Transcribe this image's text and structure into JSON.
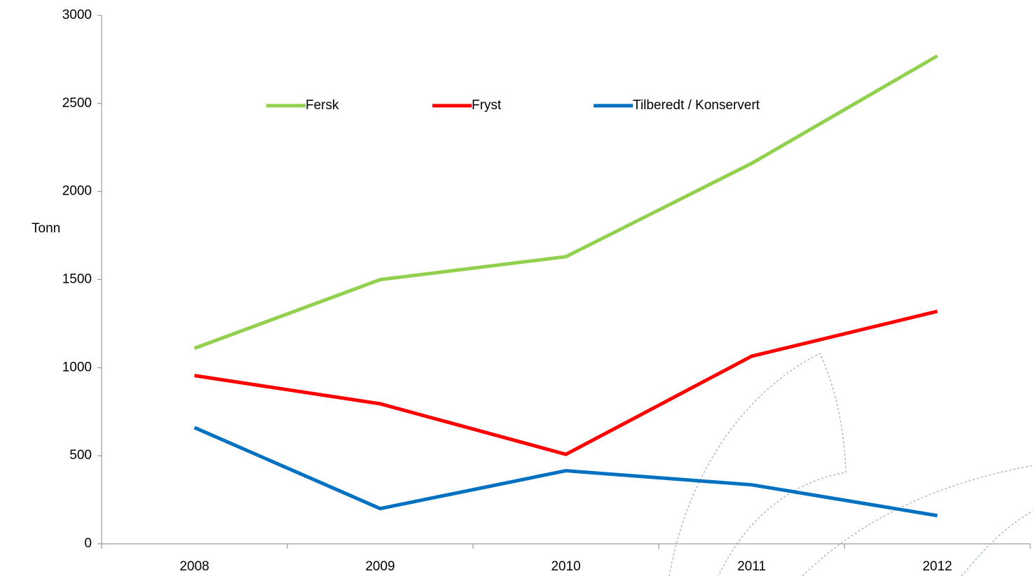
{
  "chart_data": {
    "type": "line",
    "y_label": "Tonn",
    "categories": [
      "2008",
      "2009",
      "2010",
      "2011",
      "2012"
    ],
    "series": [
      {
        "name": "Fersk",
        "color": "#92d050",
        "values": [
          1110,
          1500,
          1630,
          2160,
          2770
        ]
      },
      {
        "name": "Fryst",
        "color": "#ff0000",
        "values": [
          955,
          795,
          508,
          1065,
          1320
        ]
      },
      {
        "name": "Tilberedt / Konservert",
        "color": "#0070c0",
        "values": [
          660,
          200,
          415,
          335,
          160
        ]
      }
    ],
    "ylim": [
      0,
      3000
    ],
    "yticks": [
      0,
      500,
      1000,
      1500,
      2000,
      2500,
      3000
    ],
    "grid": false,
    "legend": "top"
  }
}
